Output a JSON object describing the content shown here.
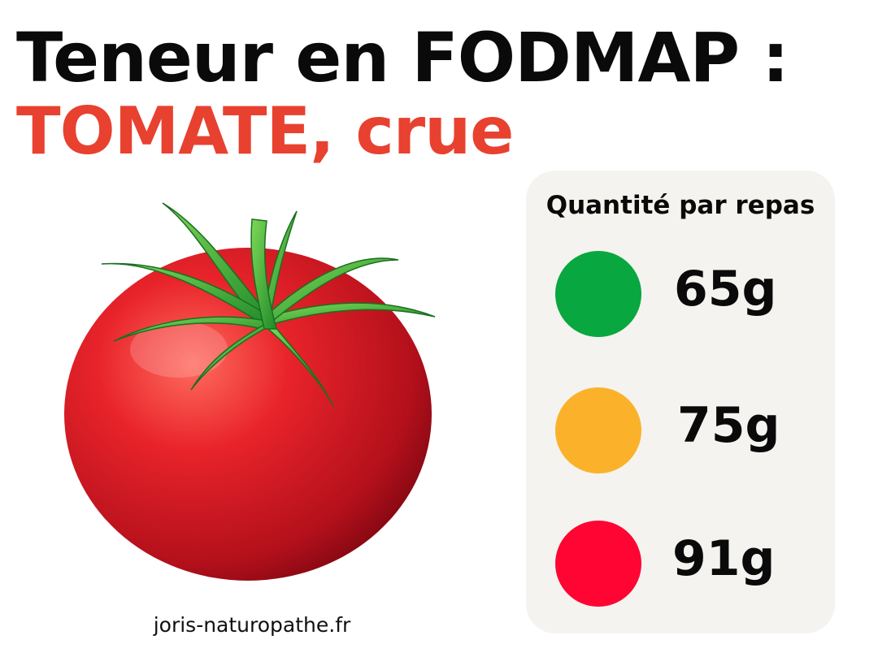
{
  "header": {
    "title": "Teneur en FODMAP :",
    "subtitle": "TOMATE, crue"
  },
  "footer": {
    "website": "joris-naturopathe.fr"
  },
  "panel": {
    "title": "Quantité par repas",
    "levels": [
      {
        "value": "65g",
        "color": "#08a73f"
      },
      {
        "value": "75g",
        "color": "#fbb22a"
      },
      {
        "value": "91g",
        "color": "#ff0533"
      }
    ]
  },
  "colors": {
    "accent": "#e8412f",
    "panel_bg": "#f4f3ef"
  }
}
